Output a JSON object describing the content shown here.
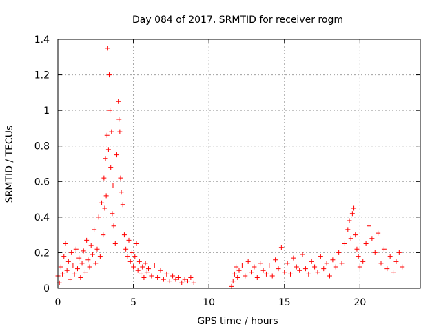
{
  "chart_data": {
    "type": "scatter",
    "title": "Day 084 of 2017, SRMTID for receiver rogm",
    "xlabel": "GPS time / hours",
    "ylabel": "SRMTID / TECUs",
    "xlim": [
      0,
      24
    ],
    "ylim": [
      0,
      1.4
    ],
    "xticks": [
      0,
      5,
      10,
      15,
      20
    ],
    "xtick_labels": [
      "0",
      "5",
      "10",
      "15",
      "20"
    ],
    "yticks": [
      0,
      0.2,
      0.4,
      0.6,
      0.8,
      1.0,
      1.2,
      1.4
    ],
    "ytick_labels": [
      "0",
      "0.2",
      "0.4",
      "0.6",
      "0.8",
      "1",
      "1.2",
      "1.4"
    ],
    "grid": true,
    "marker": "+",
    "series": [
      {
        "name": "SRMTID",
        "color": "#ff0000",
        "points": [
          [
            0.0,
            0.07
          ],
          [
            0.1,
            0.03
          ],
          [
            0.2,
            0.12
          ],
          [
            0.3,
            0.08
          ],
          [
            0.4,
            0.18
          ],
          [
            0.5,
            0.25
          ],
          [
            0.6,
            0.1
          ],
          [
            0.7,
            0.15
          ],
          [
            0.8,
            0.05
          ],
          [
            0.9,
            0.2
          ],
          [
            1.0,
            0.13
          ],
          [
            1.1,
            0.08
          ],
          [
            1.2,
            0.22
          ],
          [
            1.3,
            0.11
          ],
          [
            1.4,
            0.17
          ],
          [
            1.5,
            0.06
          ],
          [
            1.6,
            0.14
          ],
          [
            1.7,
            0.21
          ],
          [
            1.8,
            0.09
          ],
          [
            1.9,
            0.27
          ],
          [
            2.0,
            0.16
          ],
          [
            2.1,
            0.12
          ],
          [
            2.2,
            0.24
          ],
          [
            2.3,
            0.19
          ],
          [
            2.4,
            0.33
          ],
          [
            2.5,
            0.14
          ],
          [
            2.6,
            0.22
          ],
          [
            2.7,
            0.4
          ],
          [
            2.8,
            0.18
          ],
          [
            2.9,
            0.48
          ],
          [
            3.0,
            0.3
          ],
          [
            3.05,
            0.62
          ],
          [
            3.1,
            0.45
          ],
          [
            3.15,
            0.73
          ],
          [
            3.2,
            0.52
          ],
          [
            3.25,
            0.86
          ],
          [
            3.3,
            1.35
          ],
          [
            3.35,
            0.78
          ],
          [
            3.4,
            1.2
          ],
          [
            3.45,
            1.0
          ],
          [
            3.5,
            0.68
          ],
          [
            3.55,
            0.88
          ],
          [
            3.6,
            0.42
          ],
          [
            3.65,
            0.58
          ],
          [
            3.7,
            0.35
          ],
          [
            3.8,
            0.25
          ],
          [
            3.9,
            0.75
          ],
          [
            4.0,
            1.05
          ],
          [
            4.05,
            0.95
          ],
          [
            4.1,
            0.88
          ],
          [
            4.15,
            0.62
          ],
          [
            4.2,
            0.54
          ],
          [
            4.3,
            0.47
          ],
          [
            4.4,
            0.3
          ],
          [
            4.5,
            0.22
          ],
          [
            4.6,
            0.18
          ],
          [
            4.7,
            0.27
          ],
          [
            4.8,
            0.15
          ],
          [
            4.9,
            0.2
          ],
          [
            5.0,
            0.12
          ],
          [
            5.1,
            0.18
          ],
          [
            5.2,
            0.25
          ],
          [
            5.3,
            0.1
          ],
          [
            5.4,
            0.15
          ],
          [
            5.5,
            0.08
          ],
          [
            5.6,
            0.12
          ],
          [
            5.7,
            0.06
          ],
          [
            5.8,
            0.14
          ],
          [
            5.9,
            0.09
          ],
          [
            6.0,
            0.11
          ],
          [
            6.2,
            0.07
          ],
          [
            6.4,
            0.13
          ],
          [
            6.6,
            0.06
          ],
          [
            6.8,
            0.1
          ],
          [
            7.0,
            0.05
          ],
          [
            7.2,
            0.08
          ],
          [
            7.4,
            0.04
          ],
          [
            7.6,
            0.07
          ],
          [
            7.8,
            0.05
          ],
          [
            8.0,
            0.06
          ],
          [
            8.2,
            0.03
          ],
          [
            8.4,
            0.05
          ],
          [
            8.6,
            0.04
          ],
          [
            8.8,
            0.06
          ],
          [
            9.0,
            0.03
          ],
          [
            11.5,
            0.01
          ],
          [
            11.6,
            0.04
          ],
          [
            11.7,
            0.08
          ],
          [
            11.8,
            0.12
          ],
          [
            11.9,
            0.06
          ],
          [
            12.0,
            0.1
          ],
          [
            12.2,
            0.13
          ],
          [
            12.4,
            0.07
          ],
          [
            12.6,
            0.15
          ],
          [
            12.8,
            0.09
          ],
          [
            13.0,
            0.12
          ],
          [
            13.2,
            0.06
          ],
          [
            13.4,
            0.14
          ],
          [
            13.6,
            0.1
          ],
          [
            13.8,
            0.08
          ],
          [
            14.0,
            0.13
          ],
          [
            14.2,
            0.07
          ],
          [
            14.4,
            0.16
          ],
          [
            14.6,
            0.11
          ],
          [
            14.8,
            0.23
          ],
          [
            15.0,
            0.09
          ],
          [
            15.2,
            0.14
          ],
          [
            15.4,
            0.08
          ],
          [
            15.6,
            0.17
          ],
          [
            15.8,
            0.12
          ],
          [
            16.0,
            0.1
          ],
          [
            16.2,
            0.19
          ],
          [
            16.4,
            0.11
          ],
          [
            16.6,
            0.08
          ],
          [
            16.8,
            0.15
          ],
          [
            17.0,
            0.12
          ],
          [
            17.2,
            0.09
          ],
          [
            17.4,
            0.18
          ],
          [
            17.6,
            0.11
          ],
          [
            17.8,
            0.14
          ],
          [
            18.0,
            0.07
          ],
          [
            18.2,
            0.16
          ],
          [
            18.4,
            0.12
          ],
          [
            18.6,
            0.2
          ],
          [
            18.8,
            0.14
          ],
          [
            19.0,
            0.25
          ],
          [
            19.2,
            0.33
          ],
          [
            19.3,
            0.38
          ],
          [
            19.4,
            0.28
          ],
          [
            19.5,
            0.42
          ],
          [
            19.6,
            0.45
          ],
          [
            19.7,
            0.3
          ],
          [
            19.8,
            0.22
          ],
          [
            19.9,
            0.18
          ],
          [
            20.0,
            0.12
          ],
          [
            20.2,
            0.15
          ],
          [
            20.4,
            0.25
          ],
          [
            20.6,
            0.35
          ],
          [
            20.8,
            0.28
          ],
          [
            21.0,
            0.2
          ],
          [
            21.2,
            0.31
          ],
          [
            21.4,
            0.14
          ],
          [
            21.6,
            0.22
          ],
          [
            21.8,
            0.11
          ],
          [
            22.0,
            0.18
          ],
          [
            22.2,
            0.09
          ],
          [
            22.4,
            0.15
          ],
          [
            22.6,
            0.2
          ],
          [
            22.8,
            0.12
          ]
        ]
      }
    ]
  }
}
